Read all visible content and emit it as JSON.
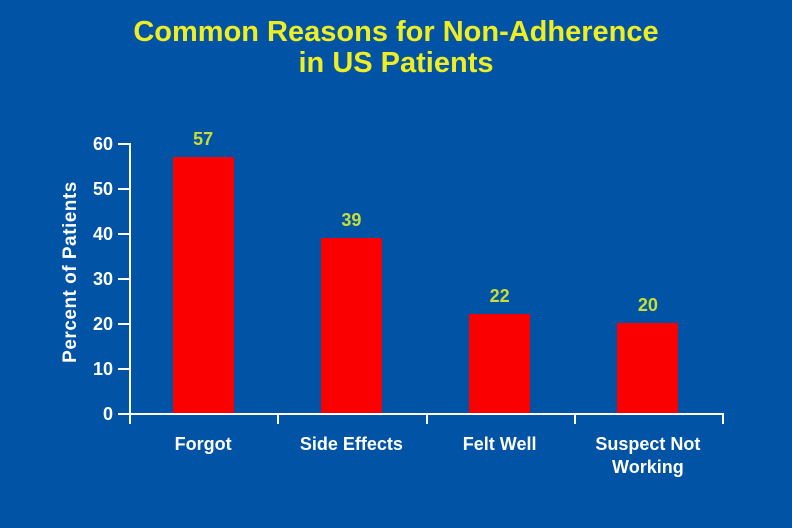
{
  "slide": {
    "title_line1": "Common Reasons for Non-Adherence",
    "title_line2": "in US Patients"
  },
  "chart_data": {
    "type": "bar",
    "title": "Common Reasons for Non-Adherence in US Patients",
    "categories": [
      "Forgot",
      "Side Effects",
      "Felt Well",
      "Suspect Not Working"
    ],
    "values": [
      57,
      39,
      22,
      20
    ],
    "data_labels": [
      "57",
      "39",
      "22",
      "20"
    ],
    "xlabel": "",
    "ylabel": "Percent of Patients",
    "ylim": [
      0,
      60
    ],
    "yticks": [
      0,
      10,
      20,
      30,
      40,
      50,
      60
    ],
    "grid": false,
    "legend": "none",
    "colors": {
      "background": "#0153A5",
      "bar": "#FB0000",
      "title": "#EEEE22",
      "value_label": "#C9DD38",
      "axis": "#FFFFFF",
      "tick_label": "#FFFFFF",
      "category_label": "#FFFFFF"
    }
  }
}
